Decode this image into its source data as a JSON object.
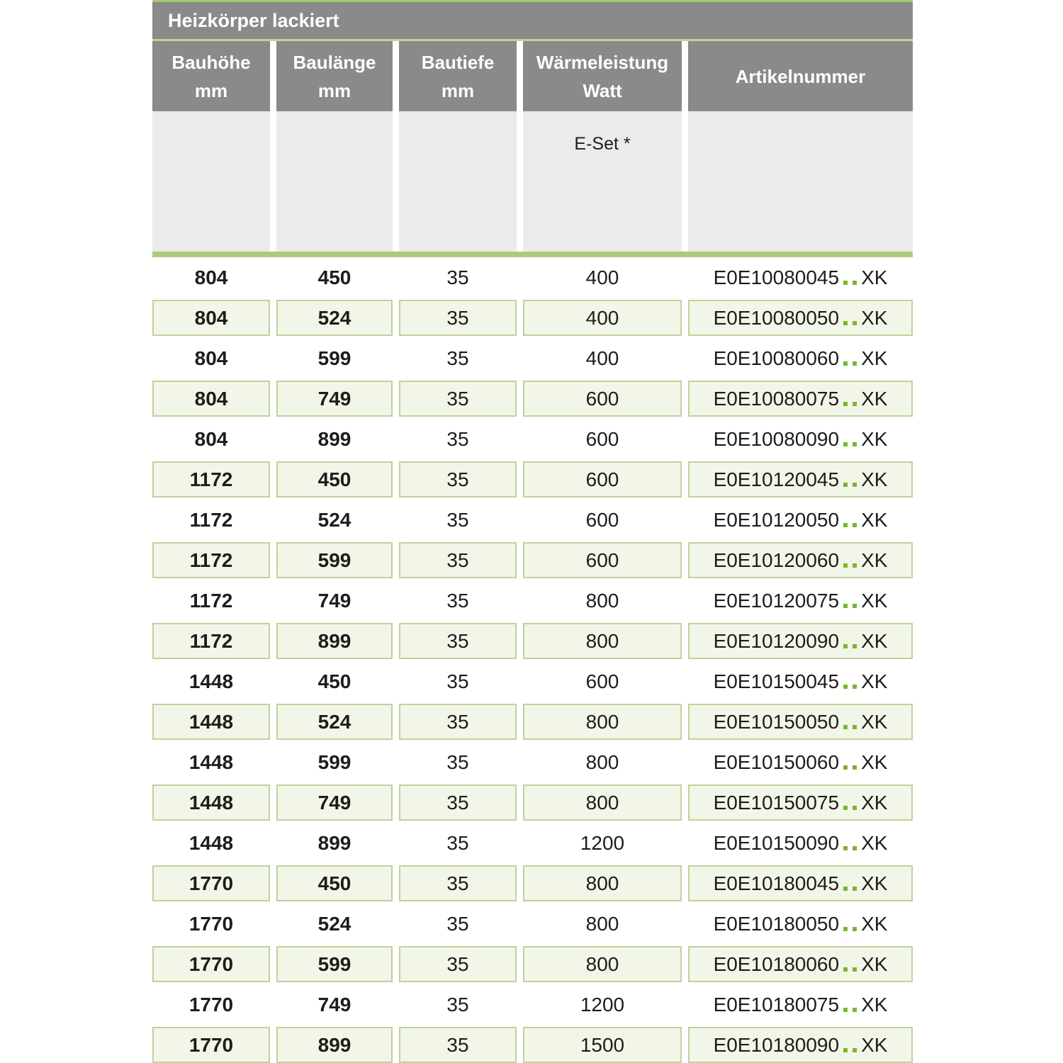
{
  "table": {
    "title": "Heizkörper lackiert",
    "columns": [
      {
        "line1": "Bauhöhe",
        "line2": "mm"
      },
      {
        "line1": "Baulänge",
        "line2": "mm"
      },
      {
        "line1": "Bautiefe",
        "line2": "mm"
      },
      {
        "line1": "Wärmeleistung",
        "line2": "Watt"
      },
      {
        "line1": "Artikelnummer",
        "line2": ""
      }
    ],
    "subheader": {
      "eset_label": "E-Set *"
    },
    "rows": [
      {
        "bauhoehe": "804",
        "baulaenge": "450",
        "bautiefe": "35",
        "watt": "400",
        "artikel_prefix": "E0E10080045",
        "artikel_dots": "..",
        "artikel_suffix": "XK"
      },
      {
        "bauhoehe": "804",
        "baulaenge": "524",
        "bautiefe": "35",
        "watt": "400",
        "artikel_prefix": "E0E10080050",
        "artikel_dots": "..",
        "artikel_suffix": "XK"
      },
      {
        "bauhoehe": "804",
        "baulaenge": "599",
        "bautiefe": "35",
        "watt": "400",
        "artikel_prefix": "E0E10080060",
        "artikel_dots": "..",
        "artikel_suffix": "XK"
      },
      {
        "bauhoehe": "804",
        "baulaenge": "749",
        "bautiefe": "35",
        "watt": "600",
        "artikel_prefix": "E0E10080075",
        "artikel_dots": "..",
        "artikel_suffix": "XK"
      },
      {
        "bauhoehe": "804",
        "baulaenge": "899",
        "bautiefe": "35",
        "watt": "600",
        "artikel_prefix": "E0E10080090",
        "artikel_dots": "..",
        "artikel_suffix": "XK"
      },
      {
        "bauhoehe": "1172",
        "baulaenge": "450",
        "bautiefe": "35",
        "watt": "600",
        "artikel_prefix": "E0E10120045",
        "artikel_dots": "..",
        "artikel_suffix": "XK"
      },
      {
        "bauhoehe": "1172",
        "baulaenge": "524",
        "bautiefe": "35",
        "watt": "600",
        "artikel_prefix": "E0E10120050",
        "artikel_dots": "..",
        "artikel_suffix": "XK"
      },
      {
        "bauhoehe": "1172",
        "baulaenge": "599",
        "bautiefe": "35",
        "watt": "600",
        "artikel_prefix": "E0E10120060",
        "artikel_dots": "..",
        "artikel_suffix": "XK"
      },
      {
        "bauhoehe": "1172",
        "baulaenge": "749",
        "bautiefe": "35",
        "watt": "800",
        "artikel_prefix": "E0E10120075",
        "artikel_dots": "..",
        "artikel_suffix": "XK"
      },
      {
        "bauhoehe": "1172",
        "baulaenge": "899",
        "bautiefe": "35",
        "watt": "800",
        "artikel_prefix": "E0E10120090",
        "artikel_dots": "..",
        "artikel_suffix": "XK"
      },
      {
        "bauhoehe": "1448",
        "baulaenge": "450",
        "bautiefe": "35",
        "watt": "600",
        "artikel_prefix": "E0E10150045",
        "artikel_dots": "..",
        "artikel_suffix": "XK"
      },
      {
        "bauhoehe": "1448",
        "baulaenge": "524",
        "bautiefe": "35",
        "watt": "800",
        "artikel_prefix": "E0E10150050",
        "artikel_dots": "..",
        "artikel_suffix": "XK"
      },
      {
        "bauhoehe": "1448",
        "baulaenge": "599",
        "bautiefe": "35",
        "watt": "800",
        "artikel_prefix": "E0E10150060",
        "artikel_dots": "..",
        "artikel_suffix": "XK"
      },
      {
        "bauhoehe": "1448",
        "baulaenge": "749",
        "bautiefe": "35",
        "watt": "800",
        "artikel_prefix": "E0E10150075",
        "artikel_dots": "..",
        "artikel_suffix": "XK"
      },
      {
        "bauhoehe": "1448",
        "baulaenge": "899",
        "bautiefe": "35",
        "watt": "1200",
        "artikel_prefix": "E0E10150090",
        "artikel_dots": "..",
        "artikel_suffix": "XK"
      },
      {
        "bauhoehe": "1770",
        "baulaenge": "450",
        "bautiefe": "35",
        "watt": "800",
        "artikel_prefix": "E0E10180045",
        "artikel_dots": "..",
        "artikel_suffix": "XK"
      },
      {
        "bauhoehe": "1770",
        "baulaenge": "524",
        "bautiefe": "35",
        "watt": "800",
        "artikel_prefix": "E0E10180050",
        "artikel_dots": "..",
        "artikel_suffix": "XK"
      },
      {
        "bauhoehe": "1770",
        "baulaenge": "599",
        "bautiefe": "35",
        "watt": "800",
        "artikel_prefix": "E0E10180060",
        "artikel_dots": "..",
        "artikel_suffix": "XK"
      },
      {
        "bauhoehe": "1770",
        "baulaenge": "749",
        "bautiefe": "35",
        "watt": "1200",
        "artikel_prefix": "E0E10180075",
        "artikel_dots": "..",
        "artikel_suffix": "XK"
      },
      {
        "bauhoehe": "1770",
        "baulaenge": "899",
        "bautiefe": "35",
        "watt": "1500",
        "artikel_prefix": "E0E10180090",
        "artikel_dots": "..",
        "artikel_suffix": "XK"
      }
    ]
  },
  "colors": {
    "header_gray": "#8a8a8a",
    "subheader_gray": "#ebebeb",
    "row_green_bg": "#f2f6e8",
    "row_green_border": "#c0d29a",
    "bar_green": "#adcb7e",
    "line_green_top": "#a6c873",
    "line_green_mid": "#bed695",
    "dot_green": "#79b62e",
    "text_dark": "#1d1d1b"
  }
}
